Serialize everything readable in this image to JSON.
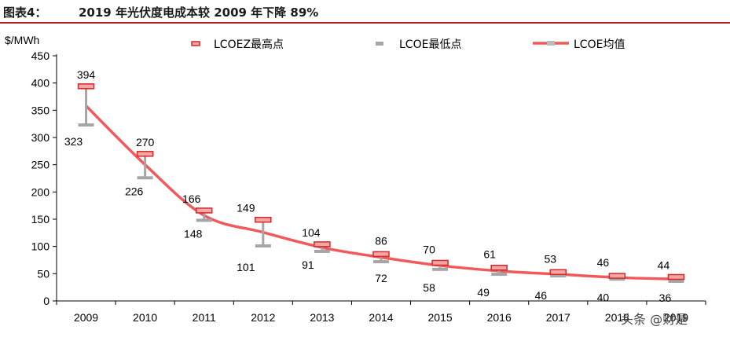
{
  "header": {
    "figure_label": "图表4：",
    "figure_title": "2019 年光伏度电成本较 2009 年下降 89%"
  },
  "chart_data": {
    "type": "line",
    "ylabel": "$/MWh",
    "ylim": [
      0,
      450
    ],
    "yticks": [
      0,
      50,
      100,
      150,
      200,
      250,
      300,
      350,
      400,
      450
    ],
    "categories": [
      "2009",
      "2010",
      "2011",
      "2012",
      "2013",
      "2014",
      "2015",
      "2016",
      "2017",
      "2018",
      "2019"
    ],
    "series": [
      {
        "name": "LCOEZ最高点",
        "values": [
          394,
          270,
          166,
          149,
          104,
          86,
          70,
          61,
          53,
          46,
          44
        ],
        "color": "#d62728"
      },
      {
        "name": "LCOE最低点",
        "values": [
          323,
          226,
          148,
          101,
          91,
          72,
          58,
          49,
          46,
          40,
          36
        ],
        "color": "#a6a6a6"
      },
      {
        "name": "LCOE均值",
        "values": [
          358,
          250,
          157,
          126,
          98,
          80,
          65,
          55,
          49,
          43,
          40
        ],
        "color": "#f05a5a"
      }
    ],
    "legend_position": "top"
  },
  "watermark": "头条 @财是"
}
